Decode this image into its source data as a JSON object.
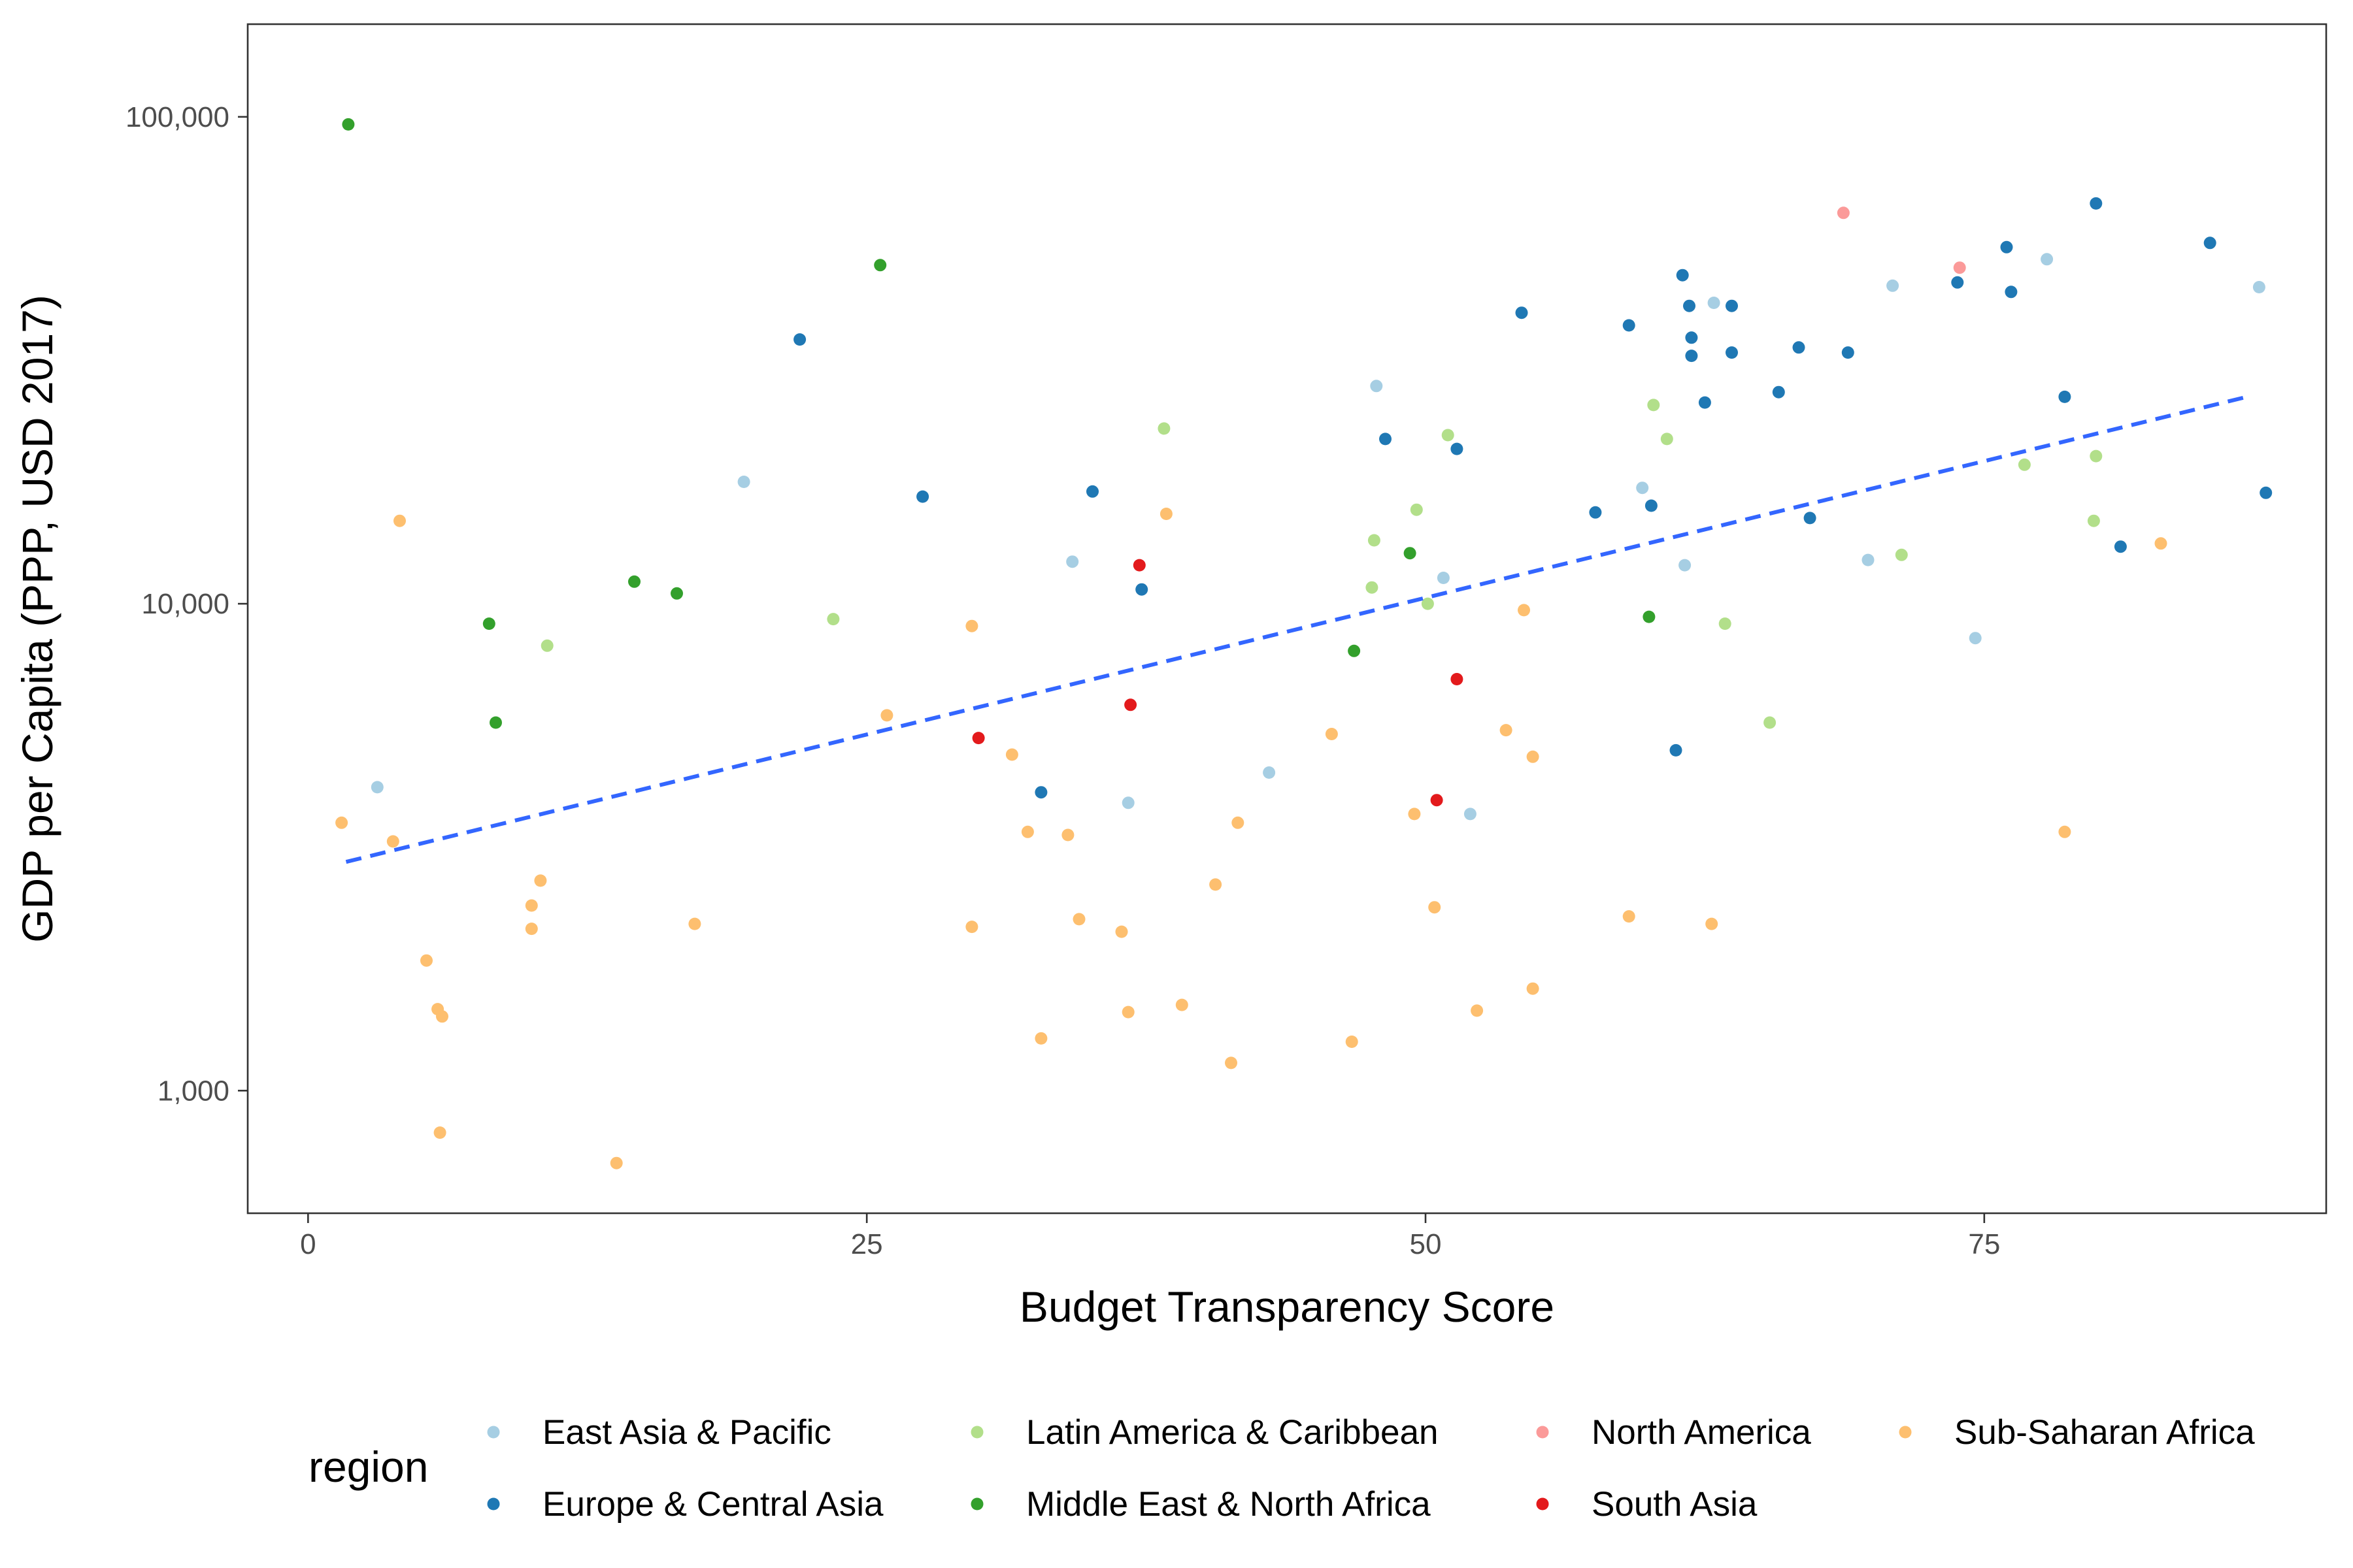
{
  "chart_data": {
    "type": "scatter",
    "xlabel": "Budget Transparency Score",
    "ylabel": "GDP per Capita (PPP, USD 2017)",
    "xlim": [
      -2.7,
      90.3
    ],
    "ylim": [
      560,
      155000
    ],
    "x_ticks": [
      0,
      25,
      50,
      75
    ],
    "x_tick_labels": [
      "0",
      "25",
      "50",
      "75"
    ],
    "y_scale": "log10",
    "y_ticks": [
      1000,
      10000,
      100000
    ],
    "y_tick_labels": [
      "1,000",
      "10,000",
      "100,000"
    ],
    "grid": false,
    "legend_title": "region",
    "legend_position": "bottom",
    "trend_line": {
      "style": "dashed",
      "color": "#3366ff",
      "from": [
        1.7,
        2950
      ],
      "to": [
        86.6,
        26500
      ]
    },
    "series": [
      {
        "name": "East Asia & Pacific",
        "color": "#a6cee3",
        "points": [
          [
            3.1,
            4200
          ],
          [
            19.5,
            17800
          ],
          [
            34.2,
            12200
          ],
          [
            36.7,
            3900
          ],
          [
            43.0,
            4500
          ],
          [
            47.8,
            28000
          ],
          [
            50.8,
            11300
          ],
          [
            52.0,
            3700
          ],
          [
            59.7,
            17300
          ],
          [
            61.6,
            12000
          ],
          [
            62.9,
            41500
          ],
          [
            69.8,
            12300
          ],
          [
            70.9,
            45000
          ],
          [
            74.6,
            8500
          ],
          [
            77.8,
            51000
          ],
          [
            87.3,
            44700
          ]
        ]
      },
      {
        "name": "Europe & Central Asia",
        "color": "#1f78b4",
        "points": [
          [
            22.0,
            34900
          ],
          [
            27.5,
            16600
          ],
          [
            32.8,
            4100
          ],
          [
            35.1,
            17000
          ],
          [
            37.3,
            10700
          ],
          [
            48.2,
            21800
          ],
          [
            51.4,
            20800
          ],
          [
            54.3,
            39600
          ],
          [
            57.6,
            15400
          ],
          [
            59.1,
            37300
          ],
          [
            60.1,
            15900
          ],
          [
            61.2,
            5000
          ],
          [
            61.5,
            47300
          ],
          [
            61.8,
            40900
          ],
          [
            61.9,
            35200
          ],
          [
            61.9,
            32300
          ],
          [
            62.5,
            25900
          ],
          [
            63.7,
            40900
          ],
          [
            63.7,
            32800
          ],
          [
            65.8,
            27200
          ],
          [
            66.7,
            33600
          ],
          [
            67.2,
            15000
          ],
          [
            68.9,
            32800
          ],
          [
            73.8,
            45700
          ],
          [
            76.0,
            54000
          ],
          [
            76.2,
            43700
          ],
          [
            78.6,
            26600
          ],
          [
            80.0,
            66400
          ],
          [
            81.1,
            13100
          ],
          [
            85.1,
            55100
          ],
          [
            87.6,
            16900
          ]
        ]
      },
      {
        "name": "Latin America & Caribbean",
        "color": "#b2df8a",
        "points": [
          [
            10.7,
            8200
          ],
          [
            23.5,
            9300
          ],
          [
            38.3,
            22900
          ],
          [
            47.7,
            13500
          ],
          [
            47.6,
            10800
          ],
          [
            49.6,
            15600
          ],
          [
            50.1,
            10000
          ],
          [
            51.0,
            22200
          ],
          [
            60.2,
            25600
          ],
          [
            60.8,
            21800
          ],
          [
            63.4,
            9100
          ],
          [
            65.4,
            5700
          ],
          [
            71.3,
            12600
          ],
          [
            76.8,
            19300
          ],
          [
            79.9,
            14800
          ],
          [
            80.0,
            20100
          ]
        ]
      },
      {
        "name": "Middle East & North Africa",
        "color": "#33a02c",
        "points": [
          [
            1.8,
            96500
          ],
          [
            8.1,
            9100
          ],
          [
            8.4,
            5700
          ],
          [
            14.6,
            11100
          ],
          [
            16.5,
            10500
          ],
          [
            25.6,
            49600
          ],
          [
            46.8,
            8000
          ],
          [
            49.3,
            12700
          ],
          [
            60.0,
            9400
          ]
        ]
      },
      {
        "name": "North America",
        "color": "#fb9a99",
        "points": [
          [
            68.7,
            63500
          ],
          [
            73.9,
            49000
          ]
        ]
      },
      {
        "name": "South Asia",
        "color": "#e31a1c",
        "points": [
          [
            30.0,
            5300
          ],
          [
            36.8,
            6200
          ],
          [
            37.2,
            12000
          ],
          [
            50.5,
            3950
          ],
          [
            51.4,
            7000
          ]
        ]
      },
      {
        "name": "Sub-Saharan Africa",
        "color": "#fdbf6f",
        "points": [
          [
            1.5,
            3550
          ],
          [
            3.8,
            3250
          ],
          [
            4.1,
            14800
          ],
          [
            5.3,
            1850
          ],
          [
            5.8,
            1470
          ],
          [
            6.0,
            1420
          ],
          [
            5.9,
            820
          ],
          [
            10.0,
            2400
          ],
          [
            10.0,
            2150
          ],
          [
            10.4,
            2700
          ],
          [
            13.8,
            710
          ],
          [
            17.3,
            2200
          ],
          [
            25.9,
            5900
          ],
          [
            29.7,
            9000
          ],
          [
            29.7,
            2170
          ],
          [
            31.5,
            4900
          ],
          [
            32.2,
            3400
          ],
          [
            32.8,
            1280
          ],
          [
            34.0,
            3350
          ],
          [
            34.5,
            2250
          ],
          [
            36.4,
            2120
          ],
          [
            36.7,
            1450
          ],
          [
            38.4,
            15300
          ],
          [
            39.1,
            1500
          ],
          [
            40.6,
            2650
          ],
          [
            41.3,
            1140
          ],
          [
            41.6,
            3550
          ],
          [
            45.8,
            5400
          ],
          [
            46.7,
            1260
          ],
          [
            49.5,
            3700
          ],
          [
            50.4,
            2380
          ],
          [
            52.3,
            1460
          ],
          [
            53.6,
            5500
          ],
          [
            54.4,
            9700
          ],
          [
            54.8,
            4850
          ],
          [
            54.8,
            1620
          ],
          [
            59.1,
            2280
          ],
          [
            62.8,
            2200
          ],
          [
            78.6,
            3400
          ],
          [
            82.9,
            13300
          ]
        ]
      }
    ]
  }
}
